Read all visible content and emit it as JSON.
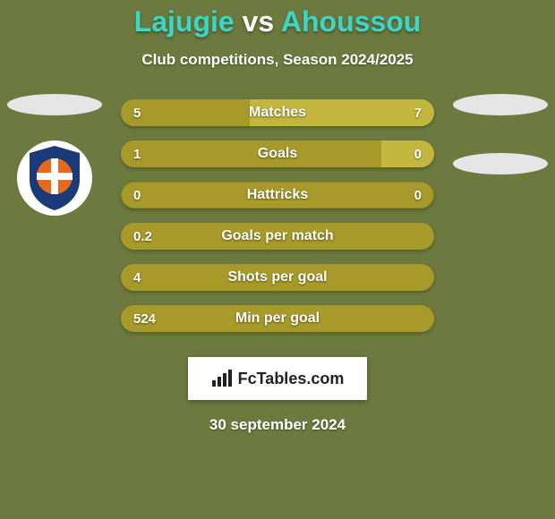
{
  "background_color": "#6c7a3f",
  "title": {
    "player_a": "Lajugie",
    "versus": " vs ",
    "player_b": "Ahoussou",
    "color_a": "#3dd6c4",
    "color_vs": "#ffffff",
    "color_b": "#3dd6c4",
    "fontsize": 32
  },
  "subtitle": "Club competitions, Season 2024/2025",
  "date": "30 september 2024",
  "ellipse_color": "#e5e5e5",
  "metrics": [
    {
      "label": "Matches",
      "left_value": "5",
      "right_value": "7",
      "left_width_pct": 41,
      "right_width_pct": 59,
      "track_color": "#a79a2a",
      "left_color": "#a79a2a",
      "right_color": "#c2b63f"
    },
    {
      "label": "Goals",
      "left_value": "1",
      "right_value": "0",
      "left_width_pct": 83,
      "right_width_pct": 17,
      "track_color": "#a79a2a",
      "left_color": "#a79a2a",
      "right_color": "#c2b63f"
    },
    {
      "label": "Hattricks",
      "left_value": "0",
      "right_value": "0",
      "left_width_pct": 0,
      "right_width_pct": 0,
      "track_color": "#a79a2a",
      "left_color": "#a79a2a",
      "right_color": "#c2b63f"
    },
    {
      "label": "Goals per match",
      "left_value": "0.2",
      "right_value": "",
      "left_width_pct": 100,
      "right_width_pct": 0,
      "track_color": "#a79a2a",
      "left_color": "#a79a2a",
      "right_color": "#c2b63f"
    },
    {
      "label": "Shots per goal",
      "left_value": "4",
      "right_value": "",
      "left_width_pct": 100,
      "right_width_pct": 0,
      "track_color": "#a79a2a",
      "left_color": "#a79a2a",
      "right_color": "#c2b63f"
    },
    {
      "label": "Min per goal",
      "left_value": "524",
      "right_value": "",
      "left_width_pct": 100,
      "right_width_pct": 0,
      "track_color": "#a79a2a",
      "left_color": "#a79a2a",
      "right_color": "#c2b63f"
    }
  ],
  "brand": {
    "text": "FcTables.com",
    "box_bg": "#ffffff",
    "text_color": "#222222"
  },
  "club_badge": {
    "shield_fill": "#1b3a7a",
    "circle_fill": "#e8691b",
    "cross_fill": "#ffffff"
  }
}
